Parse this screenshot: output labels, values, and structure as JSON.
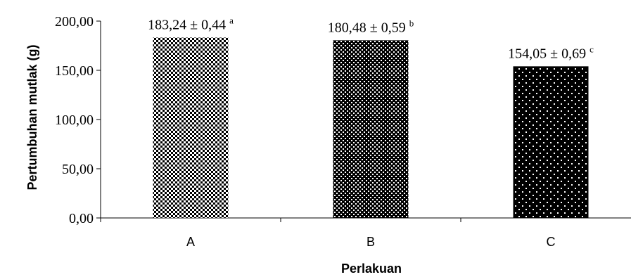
{
  "chart_data": {
    "type": "bar",
    "title": "",
    "xlabel": "Perlakuan",
    "ylabel": "Pertumbuhan mutlak (g)",
    "categories": [
      "A",
      "B",
      "C"
    ],
    "values": [
      183.24,
      180.48,
      154.05
    ],
    "errors": [
      0.44,
      0.59,
      0.69
    ],
    "data_labels": [
      "183,24 ±  0,44",
      "180,48 ± 0,59",
      "154,05 ± 0,69"
    ],
    "superscripts": [
      "a",
      "b",
      "c"
    ],
    "ylim": [
      0,
      200
    ],
    "yticks": [
      0,
      50,
      100,
      150,
      200
    ],
    "ytick_labels": [
      "0,00",
      "50,00",
      "100,00",
      "150,00",
      "200,00"
    ],
    "grid": false,
    "legend": "none",
    "patterns": [
      "checker",
      "dots-dense",
      "dots-sparse"
    ],
    "colors": {
      "bar": "#000000",
      "pattern": "#ffffff",
      "axis": "#000000"
    }
  }
}
